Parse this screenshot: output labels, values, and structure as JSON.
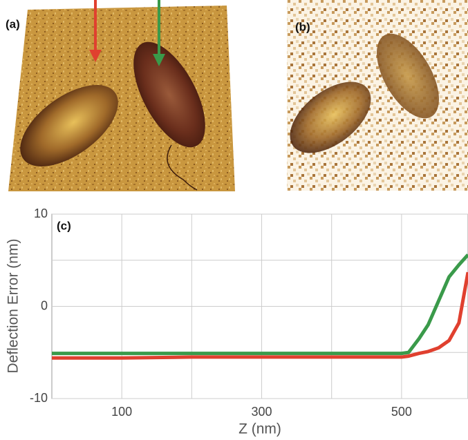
{
  "panels": {
    "a": {
      "label": "(a)"
    },
    "b": {
      "label": "(b)"
    }
  },
  "chart_data": {
    "type": "line",
    "panel_label": "(c)",
    "x_label": "Z (nm)",
    "y_label": "Deflection Error (nm)",
    "xlim": [
      0,
      595
    ],
    "ylim": [
      -10,
      10
    ],
    "xticks": [
      100,
      300,
      500
    ],
    "yticks": [
      -10,
      0,
      10
    ],
    "xgrid": [
      100,
      200,
      300,
      400,
      500
    ],
    "ygrid": [
      -10,
      -5,
      0,
      5,
      10
    ],
    "grid": true,
    "x": [
      0,
      100,
      200,
      300,
      400,
      500,
      510,
      525,
      538,
      553,
      568,
      582,
      595
    ],
    "series": [
      {
        "color": "#3a9a4a",
        "values": [
          -5.1,
          -5.1,
          -5.1,
          -5.1,
          -5.1,
          -5.1,
          -5.0,
          -3.5,
          -2.0,
          0.6,
          3.2,
          4.5,
          5.6
        ]
      },
      {
        "color": "#e0402f",
        "values": [
          -5.6,
          -5.6,
          -5.5,
          -5.5,
          -5.5,
          -5.5,
          -5.4,
          -5.1,
          -4.9,
          -4.5,
          -3.7,
          -1.8,
          3.7
        ]
      }
    ]
  }
}
